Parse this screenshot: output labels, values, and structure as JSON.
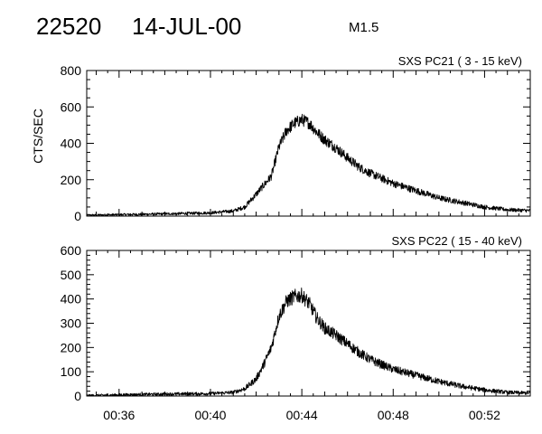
{
  "header": {
    "event_id": "22520",
    "date": "14-JUL-00",
    "flare_class": "M1.5"
  },
  "chart_data": [
    {
      "type": "line",
      "title": "SXS PC21  (  3 - 15 keV)",
      "ylabel": "CTS/SEC",
      "ylim": [
        0,
        800
      ],
      "yticks": [
        0,
        200,
        400,
        600,
        800
      ],
      "ytick_labels": [
        "0",
        "200",
        "400",
        "600",
        "800"
      ],
      "xlim": [
        "00:34:35",
        "00:54:00"
      ],
      "grid": false,
      "x": [
        "00:34:35",
        "00:36:00",
        "00:38:00",
        "00:40:00",
        "00:41:00",
        "00:41:30",
        "00:42:00",
        "00:42:20",
        "00:42:40",
        "00:43:00",
        "00:43:20",
        "00:43:40",
        "00:44:00",
        "00:44:20",
        "00:44:40",
        "00:45:00",
        "00:45:30",
        "00:46:00",
        "00:46:30",
        "00:47:00",
        "00:48:00",
        "00:49:00",
        "00:50:00",
        "00:51:00",
        "00:52:00",
        "00:53:00",
        "00:54:00"
      ],
      "y": [
        5,
        8,
        12,
        18,
        28,
        50,
        120,
        170,
        220,
        380,
        470,
        510,
        530,
        510,
        460,
        420,
        375,
        320,
        270,
        235,
        180,
        140,
        100,
        75,
        50,
        35,
        30
      ]
    },
    {
      "type": "line",
      "title": "SXS PC22  ( 15 - 40 keV)",
      "ylabel": "",
      "ylim": [
        0,
        600
      ],
      "yticks": [
        0,
        100,
        200,
        300,
        400,
        500,
        600
      ],
      "ytick_labels": [
        "0",
        "100",
        "200",
        "300",
        "400",
        "500",
        "600"
      ],
      "xlim": [
        "00:34:35",
        "00:54:00"
      ],
      "xticks": [
        "00:36",
        "00:40",
        "00:44",
        "00:48",
        "00:52"
      ],
      "xtick_values": [
        "00:36:00",
        "00:40:00",
        "00:44:00",
        "00:48:00",
        "00:52:00"
      ],
      "grid": false,
      "x": [
        "00:34:35",
        "00:36:00",
        "00:38:00",
        "00:40:00",
        "00:41:00",
        "00:41:30",
        "00:42:00",
        "00:42:20",
        "00:42:40",
        "00:43:00",
        "00:43:20",
        "00:43:40",
        "00:44:00",
        "00:44:20",
        "00:44:40",
        "00:45:00",
        "00:45:30",
        "00:46:00",
        "00:46:30",
        "00:47:00",
        "00:48:00",
        "00:49:00",
        "00:50:00",
        "00:51:00",
        "00:52:00",
        "00:53:00",
        "00:54:00"
      ],
      "y": [
        2,
        5,
        8,
        10,
        15,
        30,
        70,
        130,
        200,
        330,
        390,
        410,
        415,
        380,
        320,
        280,
        250,
        215,
        180,
        150,
        110,
        85,
        60,
        40,
        25,
        15,
        12
      ]
    }
  ]
}
